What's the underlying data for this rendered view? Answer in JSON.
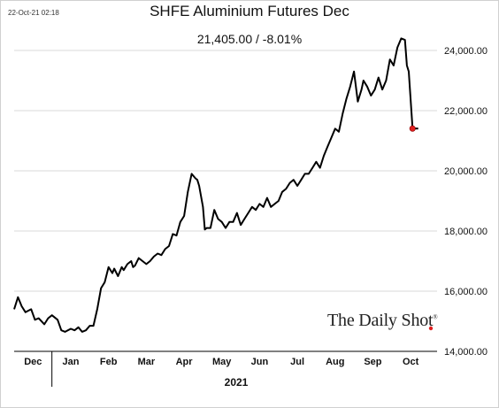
{
  "timestamp": "22-Oct-21 02:18",
  "chart_data": {
    "type": "line",
    "title": "SHFE Aluminium Futures Dec",
    "subtitle": "21,405.00  /  -8.01%",
    "xlabel": "2021",
    "ylabel": "",
    "ylim": [
      14000,
      24500
    ],
    "yticks": [
      14000,
      16000,
      18000,
      20000,
      22000,
      24000
    ],
    "ytick_labels": [
      "14,000.00",
      "16,000.00",
      "18,000.00",
      "20,000.00",
      "22,000.00",
      "24,000.00"
    ],
    "xlim": [
      0,
      11.2
    ],
    "x_tick_labels": [
      "Dec",
      "Jan",
      "Feb",
      "Mar",
      "Apr",
      "May",
      "Jun",
      "Jul",
      "Aug",
      "Sep",
      "Oct"
    ],
    "year_divider_after": "Dec",
    "grid": "horizontal",
    "line_color": "#000000",
    "last_point_color": "#e02020",
    "series": [
      {
        "x": [
          0.0,
          0.1,
          0.2,
          0.3,
          0.45,
          0.55,
          0.65,
          0.8,
          0.9,
          1.0,
          1.15,
          1.25,
          1.35,
          1.5,
          1.6,
          1.7,
          1.8,
          1.9,
          2.0,
          2.1,
          2.2,
          2.3,
          2.4,
          2.5,
          2.6,
          2.65,
          2.75,
          2.85,
          2.9,
          3.0,
          3.1,
          3.15,
          3.2,
          3.3,
          3.4,
          3.5,
          3.6,
          3.7,
          3.8,
          3.9,
          4.0,
          4.1,
          4.2,
          4.3,
          4.4,
          4.5,
          4.6,
          4.7,
          4.8,
          4.85,
          4.9,
          5.0,
          5.05,
          5.1,
          5.2,
          5.3,
          5.4,
          5.5,
          5.6,
          5.7,
          5.8,
          5.9,
          6.0,
          6.1,
          6.2,
          6.3,
          6.4,
          6.5,
          6.6,
          6.7,
          6.8,
          6.9,
          7.0,
          7.1,
          7.2,
          7.3,
          7.4,
          7.5,
          7.6,
          7.7,
          7.8,
          7.9,
          8.0,
          8.1,
          8.2,
          8.3,
          8.4,
          8.5,
          8.6,
          8.7,
          8.8,
          8.9,
          9.0,
          9.1,
          9.2,
          9.25,
          9.35,
          9.45,
          9.55,
          9.65,
          9.75,
          9.85,
          9.95,
          10.05,
          10.15,
          10.25,
          10.35,
          10.4,
          10.45,
          10.55,
          10.7
        ],
        "y": [
          15400,
          15800,
          15500,
          15300,
          15400,
          15050,
          15100,
          14900,
          15100,
          15200,
          15050,
          14700,
          14650,
          14750,
          14700,
          14800,
          14650,
          14700,
          14850,
          14850,
          15400,
          16100,
          16300,
          16800,
          16600,
          16750,
          16500,
          16800,
          16700,
          16900,
          17000,
          16800,
          16850,
          17100,
          17000,
          16900,
          17000,
          17150,
          17250,
          17200,
          17400,
          17500,
          17900,
          17850,
          18300,
          18500,
          19300,
          19900,
          19750,
          19700,
          19500,
          18800,
          18050,
          18100,
          18100,
          18700,
          18400,
          18300,
          18100,
          18300,
          18300,
          18600,
          18200,
          18400,
          18600,
          18800,
          18700,
          18900,
          18800,
          19100,
          18800,
          18900,
          19000,
          19300,
          19400,
          19600,
          19700,
          19500,
          19700,
          19900,
          19900,
          20100,
          20300,
          20100,
          20500,
          20800,
          21100,
          21400,
          21300,
          21900,
          22400,
          22800,
          23300,
          22300,
          22700,
          23000,
          22800,
          22500,
          22700,
          23100,
          22700,
          23000,
          23700,
          23500,
          24100,
          24400,
          24350,
          23500,
          23300,
          21405,
          21405
        ]
      }
    ]
  },
  "watermark": {
    "text": "The Daily Shot",
    "mark": "®"
  }
}
